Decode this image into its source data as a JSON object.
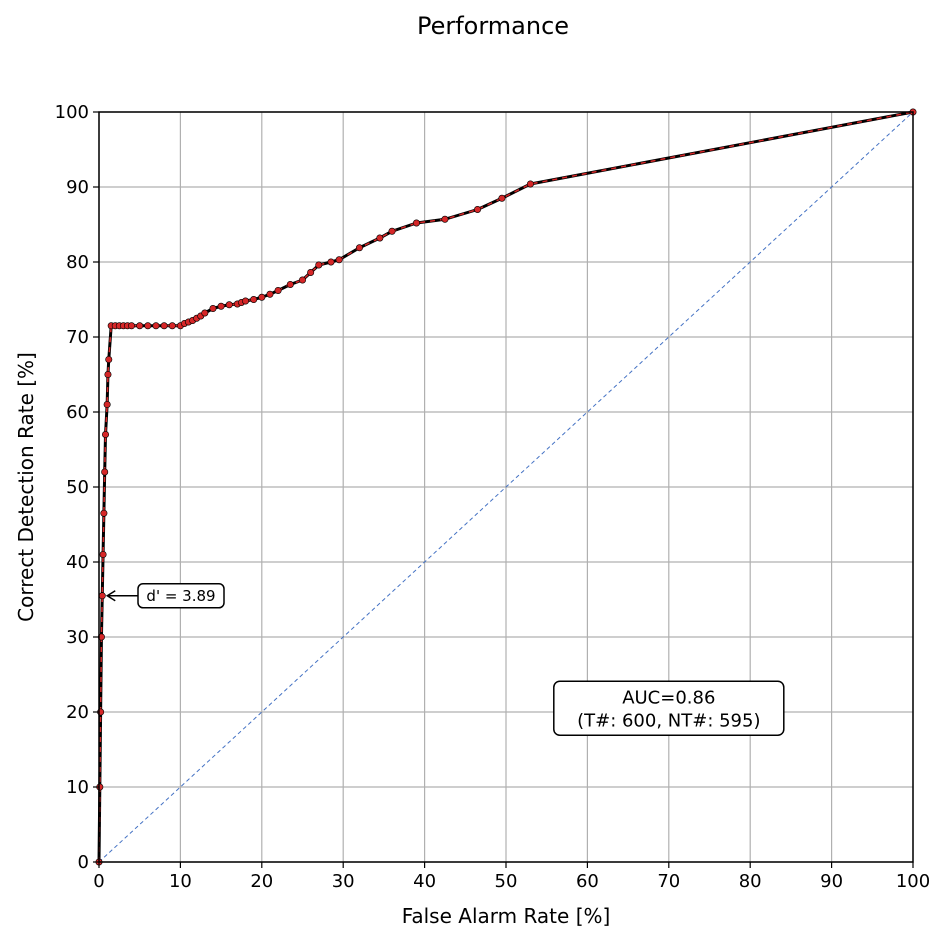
{
  "chart_data": {
    "type": "line",
    "title": "Performance",
    "xlabel": "False Alarm Rate [%]",
    "ylabel": "Correct Detection Rate [%]",
    "xlim": [
      0,
      100
    ],
    "ylim": [
      0,
      100
    ],
    "xticks": [
      "0",
      "10",
      "20",
      "30",
      "40",
      "50",
      "60",
      "70",
      "80",
      "90",
      "100"
    ],
    "yticks": [
      "0",
      "10",
      "20",
      "30",
      "40",
      "50",
      "60",
      "70",
      "80",
      "90",
      "100"
    ],
    "grid": true,
    "series": [
      {
        "style": "black solid line with red dashed overlay and red markers",
        "x": [
          0,
          0.1,
          0.2,
          0.3,
          0.4,
          0.5,
          0.6,
          0.7,
          0.8,
          1.0,
          1.1,
          1.2,
          1.5,
          2.0,
          2.5,
          3.0,
          3.5,
          4.0,
          5.0,
          6.0,
          7.0,
          8.0,
          9.0,
          10.0,
          10.5,
          11.0,
          11.5,
          12.0,
          12.5,
          13.0,
          14.0,
          15.0,
          16.0,
          17.0,
          17.5,
          18.0,
          19.0,
          20.0,
          21.0,
          22.0,
          23.5,
          25.0,
          26.0,
          27.0,
          28.5,
          29.5,
          32.0,
          34.5,
          36.0,
          39.0,
          42.5,
          46.5,
          49.5,
          53.0,
          100
        ],
        "y": [
          0,
          10,
          20,
          30,
          35.5,
          41,
          46.5,
          52,
          57,
          61,
          65,
          67,
          71.5,
          71.5,
          71.5,
          71.5,
          71.5,
          71.5,
          71.5,
          71.5,
          71.5,
          71.5,
          71.5,
          71.5,
          71.8,
          72,
          72.2,
          72.5,
          72.8,
          73.2,
          73.8,
          74.1,
          74.3,
          74.4,
          74.6,
          74.8,
          75.0,
          75.3,
          75.7,
          76.2,
          77.0,
          77.6,
          78.6,
          79.6,
          80.0,
          80.3,
          81.9,
          83.2,
          84.1,
          85.2,
          85.7,
          87.0,
          88.5,
          90.4,
          100
        ]
      },
      {
        "style": "blue dashed chance diagonal",
        "x": [
          0,
          100
        ],
        "y": [
          0,
          100
        ]
      }
    ],
    "annotations": {
      "dprime": {
        "text": "d' = 3.89",
        "x": 0.4,
        "y": 35.5
      },
      "auc_box": {
        "lines": [
          "AUC=0.86",
          "(T#: 600, NT#: 595)"
        ],
        "x": 70,
        "y": 20.5
      }
    },
    "colors": {
      "roc_line": "#000000",
      "roc_marker": "#d62728",
      "roc_overlay": "#d62728",
      "diagonal": "#4472c4",
      "grid": "#b0b0b0"
    }
  }
}
